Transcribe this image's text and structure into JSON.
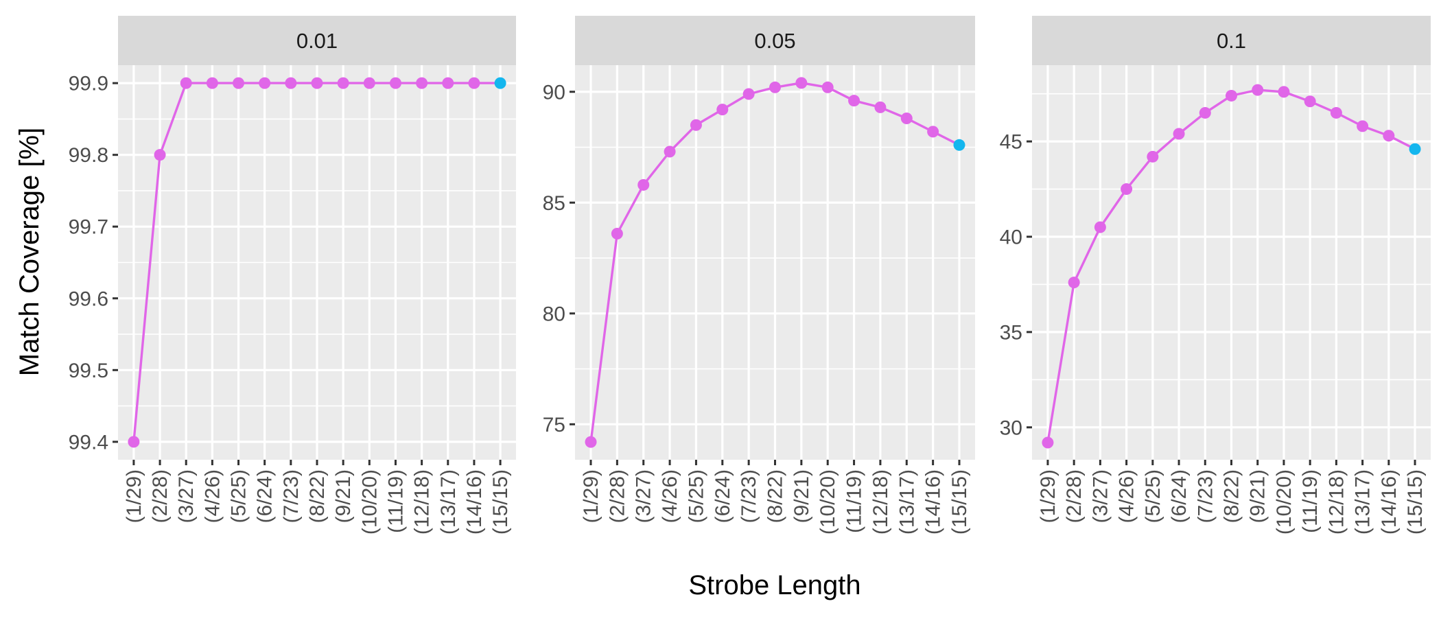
{
  "chart_data": {
    "type": "line",
    "xlabel": "Strobe Length",
    "ylabel": "Match Coverage [%]",
    "categories": [
      "(1/29)",
      "(2/28)",
      "(3/27)",
      "(4/26)",
      "(5/25)",
      "(6/24)",
      "(7/23)",
      "(8/22)",
      "(9/21)",
      "(10/20)",
      "(11/19)",
      "(12/18)",
      "(13/17)",
      "(14/16)",
      "(15/15)"
    ],
    "colors": {
      "line": "#E066E8",
      "highlight": "#14B6EE",
      "panel_bg": "#EBEBEB",
      "strip_bg": "#D9D9D9",
      "grid": "#FFFFFF"
    },
    "grid": true,
    "highlighted_category": "(15/15)",
    "panels": [
      {
        "facet_label": "0.01",
        "ylim": [
          99.375,
          99.925
        ],
        "ticks": [
          99.4,
          99.5,
          99.6,
          99.7,
          99.8,
          99.9
        ],
        "tick_labels": [
          "99.4",
          "99.5",
          "99.6",
          "99.7",
          "99.8",
          "99.9"
        ],
        "values": [
          99.4,
          99.8,
          99.9,
          99.9,
          99.9,
          99.9,
          99.9,
          99.9,
          99.9,
          99.9,
          99.9,
          99.9,
          99.9,
          99.9,
          99.9
        ]
      },
      {
        "facet_label": "0.05",
        "ylim": [
          73.4,
          91.2
        ],
        "ticks": [
          75,
          80,
          85,
          90
        ],
        "tick_labels": [
          "75",
          "80",
          "85",
          "90"
        ],
        "values": [
          74.2,
          83.6,
          85.8,
          87.3,
          88.5,
          89.2,
          89.9,
          90.2,
          90.4,
          90.2,
          89.6,
          89.3,
          88.8,
          88.2,
          87.6
        ]
      },
      {
        "facet_label": "0.1",
        "ylim": [
          28.3,
          49.0
        ],
        "ticks": [
          30,
          35,
          40,
          45
        ],
        "tick_labels": [
          "30",
          "35",
          "40",
          "45"
        ],
        "values": [
          29.2,
          37.6,
          40.5,
          42.5,
          44.2,
          45.4,
          46.5,
          47.4,
          47.7,
          47.6,
          47.1,
          46.5,
          45.8,
          45.3,
          44.6
        ]
      }
    ]
  }
}
